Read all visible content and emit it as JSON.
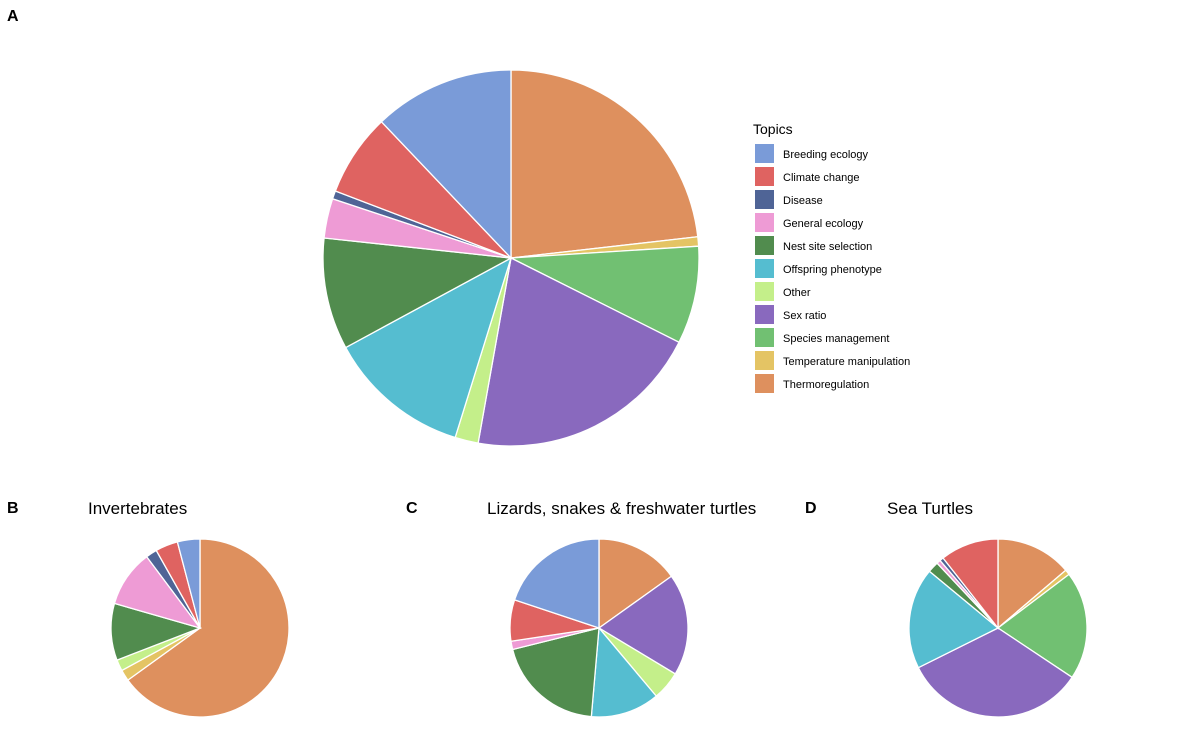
{
  "topics": [
    {
      "name": "Breeding ecology",
      "color": "#7A9BD8"
    },
    {
      "name": "Climate change",
      "color": "#DF6361"
    },
    {
      "name": "Disease",
      "color": "#4F6496"
    },
    {
      "name": "General ecology",
      "color": "#EE9BD5"
    },
    {
      "name": "Nest site selection",
      "color": "#518C4E"
    },
    {
      "name": "Offspring phenotype",
      "color": "#55BDD0"
    },
    {
      "name": "Other",
      "color": "#C4EF8A"
    },
    {
      "name": "Sex ratio",
      "color": "#8969BE"
    },
    {
      "name": "Species management",
      "color": "#71C072"
    },
    {
      "name": "Temperature manipulation",
      "color": "#E4C464"
    },
    {
      "name": "Thermoregulation",
      "color": "#DE905E"
    }
  ],
  "legend": {
    "title": "Topics",
    "position": "right of panel A"
  },
  "chart_data": [
    {
      "type": "pie",
      "panel": "A",
      "title": "",
      "unit": "percent of studies (estimated)",
      "slices": [
        {
          "topic": "Thermoregulation",
          "value": 23.2
        },
        {
          "topic": "Temperature manipulation",
          "value": 0.8
        },
        {
          "topic": "Species management",
          "value": 8.4
        },
        {
          "topic": "Sex ratio",
          "value": 20.4
        },
        {
          "topic": "Other",
          "value": 2.0
        },
        {
          "topic": "Offspring phenotype",
          "value": 12.3
        },
        {
          "topic": "Nest site selection",
          "value": 9.6
        },
        {
          "topic": "General ecology",
          "value": 3.4
        },
        {
          "topic": "Disease",
          "value": 0.7
        },
        {
          "topic": "Climate change",
          "value": 7.1
        },
        {
          "topic": "Breeding ecology",
          "value": 12.1
        }
      ]
    },
    {
      "type": "pie",
      "panel": "B",
      "title": "Invertebrates",
      "unit": "percent of studies (estimated)",
      "slices": [
        {
          "topic": "Thermoregulation",
          "value": 57.3
        },
        {
          "topic": "Temperature manipulation",
          "value": 1.8
        },
        {
          "topic": "Other",
          "value": 1.8
        },
        {
          "topic": "Nest site selection",
          "value": 9.1
        },
        {
          "topic": "General ecology",
          "value": 9.1
        },
        {
          "topic": "Disease",
          "value": 1.8
        },
        {
          "topic": "Climate change",
          "value": 3.6
        },
        {
          "topic": "Breeding ecology",
          "value": 3.6
        }
      ]
    },
    {
      "type": "pie",
      "panel": "C",
      "title": "Lizards, snakes & freshwater turtles",
      "unit": "percent of studies (estimated)",
      "slices": [
        {
          "topic": "Thermoregulation",
          "value": 12.1
        },
        {
          "topic": "Sex ratio",
          "value": 14.8
        },
        {
          "topic": "Other",
          "value": 4.2
        },
        {
          "topic": "Offspring phenotype",
          "value": 10.0
        },
        {
          "topic": "Nest site selection",
          "value": 15.8
        },
        {
          "topic": "General ecology",
          "value": 1.2
        },
        {
          "topic": "Climate change",
          "value": 6.0
        },
        {
          "topic": "Breeding ecology",
          "value": 15.9
        }
      ]
    },
    {
      "type": "pie",
      "panel": "D",
      "title": "Sea Turtles",
      "unit": "percent of studies (estimated)",
      "slices": [
        {
          "topic": "Thermoregulation",
          "value": 11.7
        },
        {
          "topic": "Temperature manipulation",
          "value": 0.8
        },
        {
          "topic": "Species management",
          "value": 16.7
        },
        {
          "topic": "Sex ratio",
          "value": 28.3
        },
        {
          "topic": "Offspring phenotype",
          "value": 15.6
        },
        {
          "topic": "Nest site selection",
          "value": 1.7
        },
        {
          "topic": "General ecology",
          "value": 0.6
        },
        {
          "topic": "Disease",
          "value": 0.6
        },
        {
          "topic": "Climate change",
          "value": 9.0
        }
      ]
    }
  ],
  "panels": [
    {
      "letter": "A",
      "title": ""
    },
    {
      "letter": "B",
      "title": "Invertebrates"
    },
    {
      "letter": "C",
      "title": "Lizards, snakes & freshwater turtles"
    },
    {
      "letter": "D",
      "title": "Sea Turtles"
    }
  ]
}
